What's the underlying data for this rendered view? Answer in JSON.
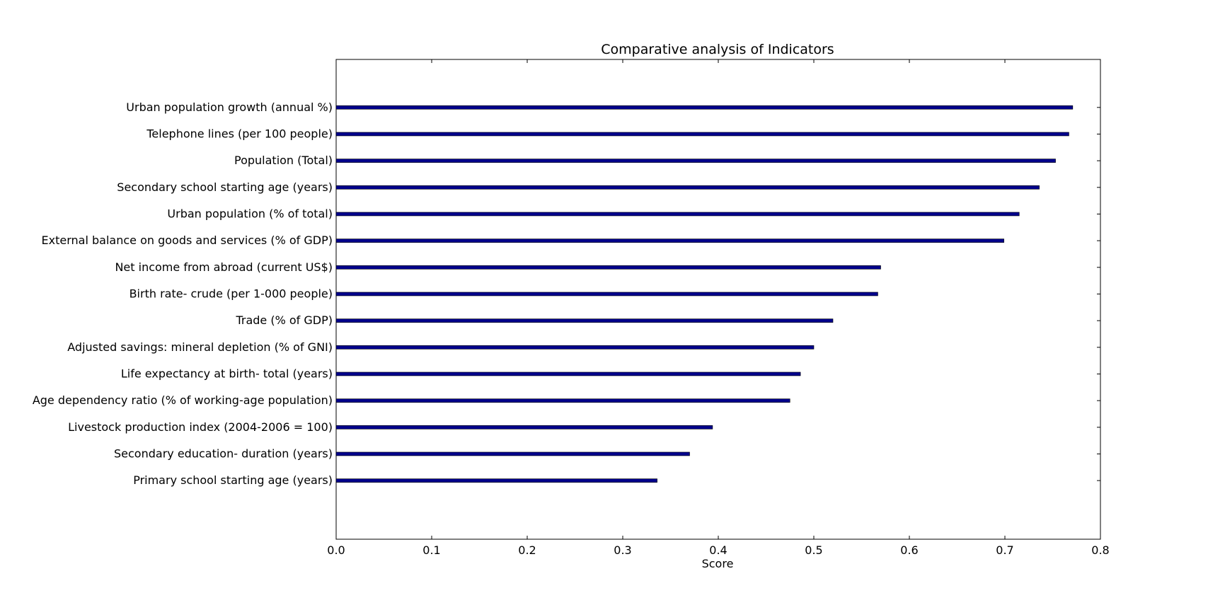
{
  "chart_data": {
    "type": "bar",
    "orientation": "horizontal",
    "title": "Comparative analysis of Indicators",
    "xlabel": "Score",
    "ylabel": "",
    "xlim": [
      0,
      0.8
    ],
    "xticks": [
      "0.0",
      "0.1",
      "0.2",
      "0.3",
      "0.4",
      "0.5",
      "0.6",
      "0.7",
      "0.8"
    ],
    "grid": false,
    "bar_color": "#00008b",
    "categories": [
      "Urban population growth (annual %)",
      "Telephone lines (per 100 people)",
      "Population (Total)",
      "Secondary school starting age (years)",
      "Urban population (% of total)",
      "External balance on goods and services (% of GDP)",
      "Net income from abroad (current US$)",
      "Birth rate- crude (per 1-000 people)",
      "Trade (% of GDP)",
      "Adjusted savings: mineral depletion (% of GNI)",
      "Life expectancy at birth- total (years)",
      "Age dependency ratio (% of working-age population)",
      "Livestock production index (2004-2006 = 100)",
      "Secondary education- duration (years)",
      "Primary school starting age (years)"
    ],
    "values": [
      0.771,
      0.767,
      0.753,
      0.736,
      0.715,
      0.699,
      0.57,
      0.567,
      0.52,
      0.5,
      0.486,
      0.475,
      0.394,
      0.37,
      0.336
    ]
  }
}
